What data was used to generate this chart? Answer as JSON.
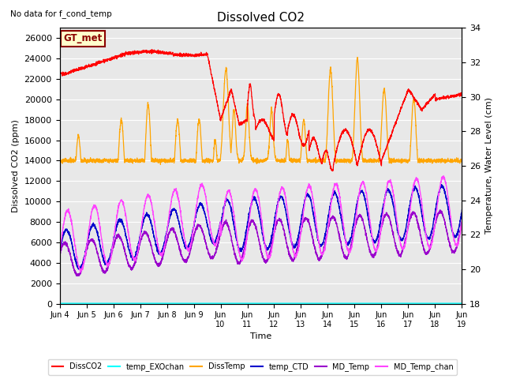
{
  "title": "Dissolved CO2",
  "top_left_text": "No data for f_cond_temp",
  "xlabel": "Time",
  "ylabel_left": "Dissolved CO2 (ppm)",
  "ylabel_right": "Temperature, Water Level (cm)",
  "annotation_box": "GT_met",
  "xlim_days": [
    4,
    19
  ],
  "ylim_left": [
    0,
    27000
  ],
  "ylim_right": [
    18,
    34
  ],
  "yticks_left": [
    0,
    2000,
    4000,
    6000,
    8000,
    10000,
    12000,
    14000,
    16000,
    18000,
    20000,
    22000,
    24000,
    26000
  ],
  "yticks_right": [
    18,
    20,
    22,
    24,
    26,
    28,
    30,
    32,
    34
  ],
  "xtick_labels": [
    "Jun 4",
    "Jun 5",
    "Jun 6",
    "Jun 7",
    "Jun 8",
    "Jun 9",
    "Jun\n10",
    "Jun\n11",
    "Jun\n12",
    "Jun\n13",
    "Jun\n14",
    "Jun\n15",
    "Jun\n16",
    "Jun\n17",
    "Jun\n18",
    "Jun\n19"
  ],
  "xtick_positions": [
    4,
    5,
    6,
    7,
    8,
    9,
    10,
    11,
    12,
    13,
    14,
    15,
    16,
    17,
    18,
    19
  ],
  "legend_entries": [
    {
      "label": "DissCO2",
      "color": "#ff0000",
      "linestyle": "-"
    },
    {
      "label": "temp_EXOchan",
      "color": "#00ffff",
      "linestyle": "-"
    },
    {
      "label": "DissTemp",
      "color": "#ffa500",
      "linestyle": "-"
    },
    {
      "label": "temp_CTD",
      "color": "#0000cc",
      "linestyle": "-"
    },
    {
      "label": "MD_Temp",
      "color": "#9900cc",
      "linestyle": "-"
    },
    {
      "label": "MD_Temp_chan",
      "color": "#ff44ff",
      "linestyle": "-"
    }
  ],
  "figsize": [
    6.4,
    4.8
  ],
  "dpi": 100,
  "background_color": "#e8e8e8",
  "grid_color": "#ffffff"
}
